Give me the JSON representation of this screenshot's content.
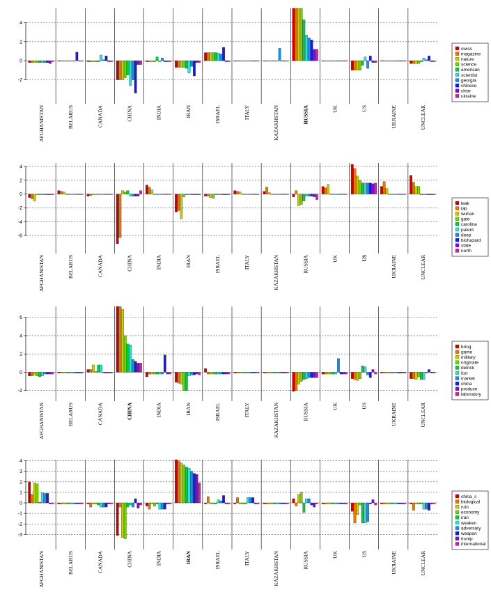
{
  "palette": [
    "#cc0000",
    "#e07a00",
    "#c8cc00",
    "#6ed800",
    "#00cc44",
    "#33dddd",
    "#1e8ee0",
    "#1a1ae0",
    "#7a10cc",
    "#cc22aa"
  ],
  "chart_data": [
    {
      "type": "bar",
      "categories": [
        "AFGHANISTAN",
        "BELARUS",
        "CANADA",
        "CHINA",
        "INDIA",
        "IRAN",
        "ISRAEL",
        "ITALY",
        "KAZAKHSTAN",
        "RUSSIA",
        "UK",
        "US",
        "UKRAINE",
        "UNCLEAR"
      ],
      "bold_category": "RUSSIA",
      "ylim": [
        -3.5,
        5.5
      ],
      "yticks": [
        -2,
        0,
        2,
        4
      ],
      "legend": [
        "swiss",
        "magazine",
        "nature",
        "science",
        "american",
        "scientist",
        "georgia",
        "chinese",
        "clear",
        "ukraine"
      ],
      "legend_placement": "right",
      "grid": true,
      "values": [
        [
          -0.2,
          -0.2,
          -0.2,
          -0.2,
          -0.2,
          -0.2,
          -0.2,
          -0.2,
          -0.3,
          -0.1
        ],
        [
          -0.05,
          -0.05,
          -0.05,
          -0.05,
          -0.05,
          -0.05,
          -0.05,
          0.9,
          -0.05,
          -0.05
        ],
        [
          -0.1,
          -0.1,
          -0.1,
          -0.1,
          -0.1,
          0.6,
          0.1,
          0.5,
          -0.1,
          -0.1
        ],
        [
          -2.0,
          -2.0,
          -2.0,
          -1.8,
          -1.5,
          -2.6,
          -2.0,
          -3.4,
          -0.4,
          -0.4
        ],
        [
          -0.1,
          -0.1,
          -0.1,
          -0.1,
          0.4,
          -0.1,
          0.3,
          -0.1,
          -0.1,
          -0.1
        ],
        [
          -0.7,
          -0.7,
          -0.7,
          -0.7,
          -0.8,
          -1.3,
          -0.6,
          -1.6,
          -0.2,
          -0.2
        ],
        [
          0.85,
          0.85,
          0.85,
          0.85,
          0.85,
          0.8,
          0.7,
          1.4,
          -0.1,
          -0.1
        ],
        [
          -0.05,
          -0.05,
          -0.05,
          -0.05,
          -0.05,
          -0.05,
          -0.05,
          -0.05,
          -0.05,
          -0.05
        ],
        [
          -0.05,
          -0.05,
          -0.05,
          -0.05,
          -0.05,
          -0.05,
          1.3,
          -0.05,
          -0.05,
          -0.05
        ],
        [
          5.5,
          5.5,
          5.5,
          5.5,
          4.3,
          2.7,
          2.4,
          2.2,
          1.2,
          1.2
        ],
        [
          -0.05,
          -0.05,
          -0.05,
          -0.05,
          -0.05,
          -0.05,
          -0.05,
          -0.05,
          -0.05,
          -0.05
        ],
        [
          -1.0,
          -1.0,
          -1.0,
          -1.0,
          -0.5,
          0.4,
          -0.8,
          0.5,
          -0.2,
          -0.2
        ],
        [
          -0.05,
          -0.05,
          -0.05,
          -0.05,
          -0.05,
          -0.05,
          -0.05,
          -0.05,
          -0.05,
          -0.05
        ],
        [
          -0.3,
          -0.3,
          -0.3,
          -0.3,
          -0.1,
          0.3,
          0.1,
          0.5,
          -0.1,
          -0.1
        ]
      ]
    },
    {
      "type": "bar",
      "categories": [
        "AFGHANISTAN",
        "BELARUS",
        "CANADA",
        "CHINA",
        "INDIA",
        "IRAN",
        "ISRAEL",
        "ITALY",
        "KAZAKHSTAN",
        "RUSSIA",
        "UK",
        "US",
        "UKRAINE",
        "UNCLEAR"
      ],
      "bold_category": "US",
      "ylim": [
        -7.2,
        4.5
      ],
      "yticks": [
        -6,
        -4,
        -2,
        0,
        2,
        4
      ],
      "legend": [
        "leak",
        "lab",
        "wuhan",
        "gate",
        "carolina",
        "patent",
        "deep",
        "biohazard",
        "state",
        "north"
      ],
      "legend_placement": "right",
      "grid": true,
      "values": [
        [
          -0.5,
          -0.7,
          -1.0,
          -0.1,
          -0.1,
          -0.1,
          -0.1,
          -0.1,
          -0.1,
          -0.1
        ],
        [
          0.5,
          0.4,
          0.3,
          -0.05,
          -0.05,
          -0.05,
          -0.05,
          -0.05,
          -0.05,
          -0.05
        ],
        [
          -0.3,
          -0.2,
          -0.1,
          -0.05,
          -0.05,
          -0.05,
          -0.05,
          -0.05,
          -0.05,
          -0.05
        ],
        [
          -7.2,
          -6.3,
          0.5,
          0.3,
          0.5,
          -0.3,
          -0.3,
          -0.3,
          -0.3,
          0.5
        ],
        [
          1.3,
          1.0,
          0.6,
          -0.05,
          -0.05,
          -0.05,
          -0.05,
          -0.05,
          -0.05,
          -0.05
        ],
        [
          -2.6,
          -2.4,
          -3.6,
          -0.4,
          -0.1,
          -0.1,
          -0.1,
          -0.1,
          -0.1,
          -0.1
        ],
        [
          -0.3,
          -0.3,
          -0.5,
          -0.6,
          -0.1,
          -0.1,
          -0.1,
          -0.1,
          -0.1,
          -0.1
        ],
        [
          0.5,
          0.4,
          0.3,
          -0.05,
          -0.05,
          -0.05,
          -0.05,
          -0.05,
          -0.05,
          -0.05
        ],
        [
          0.4,
          1.0,
          0.2,
          -0.05,
          -0.05,
          -0.05,
          -0.05,
          -0.05,
          -0.05,
          -0.05
        ],
        [
          -0.4,
          0.5,
          -1.7,
          -1.5,
          -1.0,
          -0.3,
          -0.3,
          -0.3,
          -0.4,
          -0.8
        ],
        [
          1.1,
          0.9,
          1.4,
          -0.05,
          -0.05,
          -0.05,
          -0.05,
          -0.05,
          -0.05,
          -0.05
        ],
        [
          4.3,
          3.7,
          2.6,
          2.0,
          1.6,
          1.6,
          1.6,
          1.6,
          1.5,
          1.6
        ],
        [
          1.1,
          1.8,
          0.8,
          -0.05,
          -0.05,
          -0.05,
          -0.05,
          -0.05,
          -0.05,
          -0.05
        ],
        [
          2.7,
          1.7,
          1.1,
          1.1,
          -0.1,
          -0.1,
          -0.1,
          -0.1,
          -0.1,
          -0.1
        ]
      ]
    },
    {
      "type": "bar",
      "categories": [
        "AFGHANISTAN",
        "BELARUS",
        "CANADA",
        "CHINA",
        "INDIA",
        "IRAN",
        "ISRAEL",
        "ITALY",
        "KAZAKHSTAN",
        "RUSSIA",
        "UK",
        "US",
        "UKRAINE",
        "UNCLEAR"
      ],
      "bold_category": "CHINA",
      "ylim": [
        -2.1,
        7.2
      ],
      "yticks": [
        -2,
        0,
        2,
        4,
        6
      ],
      "legend": [
        "bring",
        "game",
        "military",
        "originate",
        "detrick",
        "fort",
        "market",
        "china",
        "produce",
        "laboratory"
      ],
      "legend_placement": "right",
      "grid": true,
      "values": [
        [
          -0.4,
          -0.4,
          -0.3,
          -0.4,
          -0.5,
          -0.4,
          -0.2,
          -0.2,
          -0.2,
          -0.2
        ],
        [
          -0.1,
          -0.1,
          -0.1,
          -0.1,
          -0.1,
          -0.1,
          -0.1,
          -0.1,
          -0.1,
          -0.1
        ],
        [
          0.3,
          0.3,
          0.8,
          0.1,
          0.8,
          0.8,
          -0.1,
          -0.1,
          -0.1,
          -0.1
        ],
        [
          7.2,
          7.2,
          6.9,
          4.0,
          3.1,
          3.0,
          1.4,
          1.2,
          1.0,
          1.0
        ],
        [
          -0.5,
          -0.2,
          -0.2,
          -0.2,
          -0.2,
          -0.2,
          -0.2,
          1.9,
          -0.2,
          -0.2
        ],
        [
          -1.1,
          -1.2,
          -1.3,
          -2.0,
          -2.0,
          -0.4,
          -0.3,
          -0.3,
          -0.2,
          -0.3
        ],
        [
          0.4,
          -0.2,
          -0.2,
          -0.2,
          -0.2,
          -0.2,
          -0.2,
          -0.2,
          -0.2,
          -0.2
        ],
        [
          -0.1,
          -0.1,
          -0.1,
          -0.1,
          -0.1,
          -0.1,
          -0.1,
          -0.1,
          -0.1,
          -0.1
        ],
        [
          -0.1,
          -0.1,
          -0.1,
          -0.1,
          -0.1,
          -0.1,
          -0.1,
          -0.1,
          -0.1,
          -0.1
        ],
        [
          -2.1,
          -2.0,
          -1.3,
          -1.0,
          -0.8,
          -0.7,
          -0.6,
          -0.6,
          -0.6,
          -0.6
        ],
        [
          -0.2,
          -0.2,
          -0.2,
          -0.2,
          -0.2,
          -0.2,
          1.5,
          -0.2,
          -0.2,
          -0.2
        ],
        [
          -0.7,
          -0.8,
          -0.9,
          -0.7,
          0.7,
          0.6,
          -0.3,
          -0.6,
          0.3,
          -0.2
        ],
        [
          -0.1,
          -0.1,
          -0.1,
          -0.1,
          -0.1,
          -0.1,
          -0.1,
          -0.1,
          -0.1,
          -0.1
        ],
        [
          -0.7,
          -0.7,
          -0.8,
          -0.5,
          -0.8,
          -0.8,
          -0.1,
          0.3,
          -0.1,
          -0.1
        ]
      ]
    },
    {
      "type": "bar",
      "categories": [
        "AFGHANISTAN",
        "BELARUS",
        "CANADA",
        "CHINA",
        "INDIA",
        "IRAN",
        "ISRAEL",
        "ITALY",
        "KAZAKHSTAN",
        "RUSSIA",
        "UK",
        "US",
        "UKRAINE",
        "UNCLEAR"
      ],
      "bold_category": "IRAN",
      "ylim": [
        -3.5,
        4.1
      ],
      "yticks": [
        -3,
        -2,
        -1,
        0,
        1,
        2,
        3,
        4
      ],
      "legend": [
        "china_s",
        "biological",
        "ruin",
        "economy",
        "iran",
        "weaken",
        "adversary",
        "weapon",
        "trump",
        "international"
      ],
      "legend_placement": "right",
      "grid": true,
      "values": [
        [
          2.0,
          0.8,
          1.9,
          1.8,
          0.05,
          0.95,
          0.9,
          0.9,
          -0.1,
          -0.1
        ],
        [
          -0.1,
          -0.1,
          -0.1,
          -0.1,
          -0.1,
          -0.1,
          -0.1,
          -0.1,
          -0.1,
          -0.1
        ],
        [
          -0.1,
          -0.4,
          -0.1,
          -0.1,
          -0.2,
          -0.4,
          -0.4,
          -0.4,
          -0.1,
          -0.1
        ],
        [
          -3.1,
          -0.4,
          -3.3,
          -3.4,
          -0.4,
          -0.2,
          -0.4,
          0.4,
          -0.5,
          -0.2
        ],
        [
          -0.3,
          -0.6,
          -0.1,
          -0.3,
          -0.1,
          -0.6,
          -0.6,
          -0.6,
          -0.1,
          -0.1
        ],
        [
          4.1,
          4.0,
          3.8,
          3.6,
          3.4,
          3.3,
          3.0,
          2.8,
          2.7,
          1.9
        ],
        [
          -0.1,
          0.6,
          -0.1,
          -0.1,
          -0.1,
          0.3,
          0.2,
          0.7,
          -0.1,
          -0.1
        ],
        [
          -0.1,
          0.5,
          -0.1,
          -0.1,
          -0.1,
          0.5,
          0.5,
          0.5,
          -0.1,
          -0.1
        ],
        [
          -0.1,
          -0.1,
          -0.1,
          -0.1,
          -0.1,
          -0.1,
          -0.1,
          -0.1,
          -0.1,
          -0.1
        ],
        [
          0.4,
          -0.3,
          0.8,
          1.0,
          -0.9,
          0.4,
          0.4,
          -0.2,
          -0.4,
          -0.1
        ],
        [
          -0.1,
          -0.1,
          -0.1,
          -0.1,
          -0.1,
          -0.1,
          -0.1,
          -0.1,
          -0.1,
          -0.1
        ],
        [
          -0.8,
          -1.9,
          -1.1,
          -0.2,
          -1.9,
          -1.9,
          -1.8,
          -0.1,
          0.3,
          -0.2
        ],
        [
          -0.1,
          -0.1,
          -0.1,
          -0.1,
          -0.1,
          -0.1,
          -0.1,
          -0.1,
          -0.1,
          -0.1
        ],
        [
          -0.1,
          -0.7,
          -0.1,
          -0.1,
          -0.1,
          -0.6,
          -0.6,
          -0.7,
          -0.1,
          -0.1
        ]
      ]
    }
  ]
}
